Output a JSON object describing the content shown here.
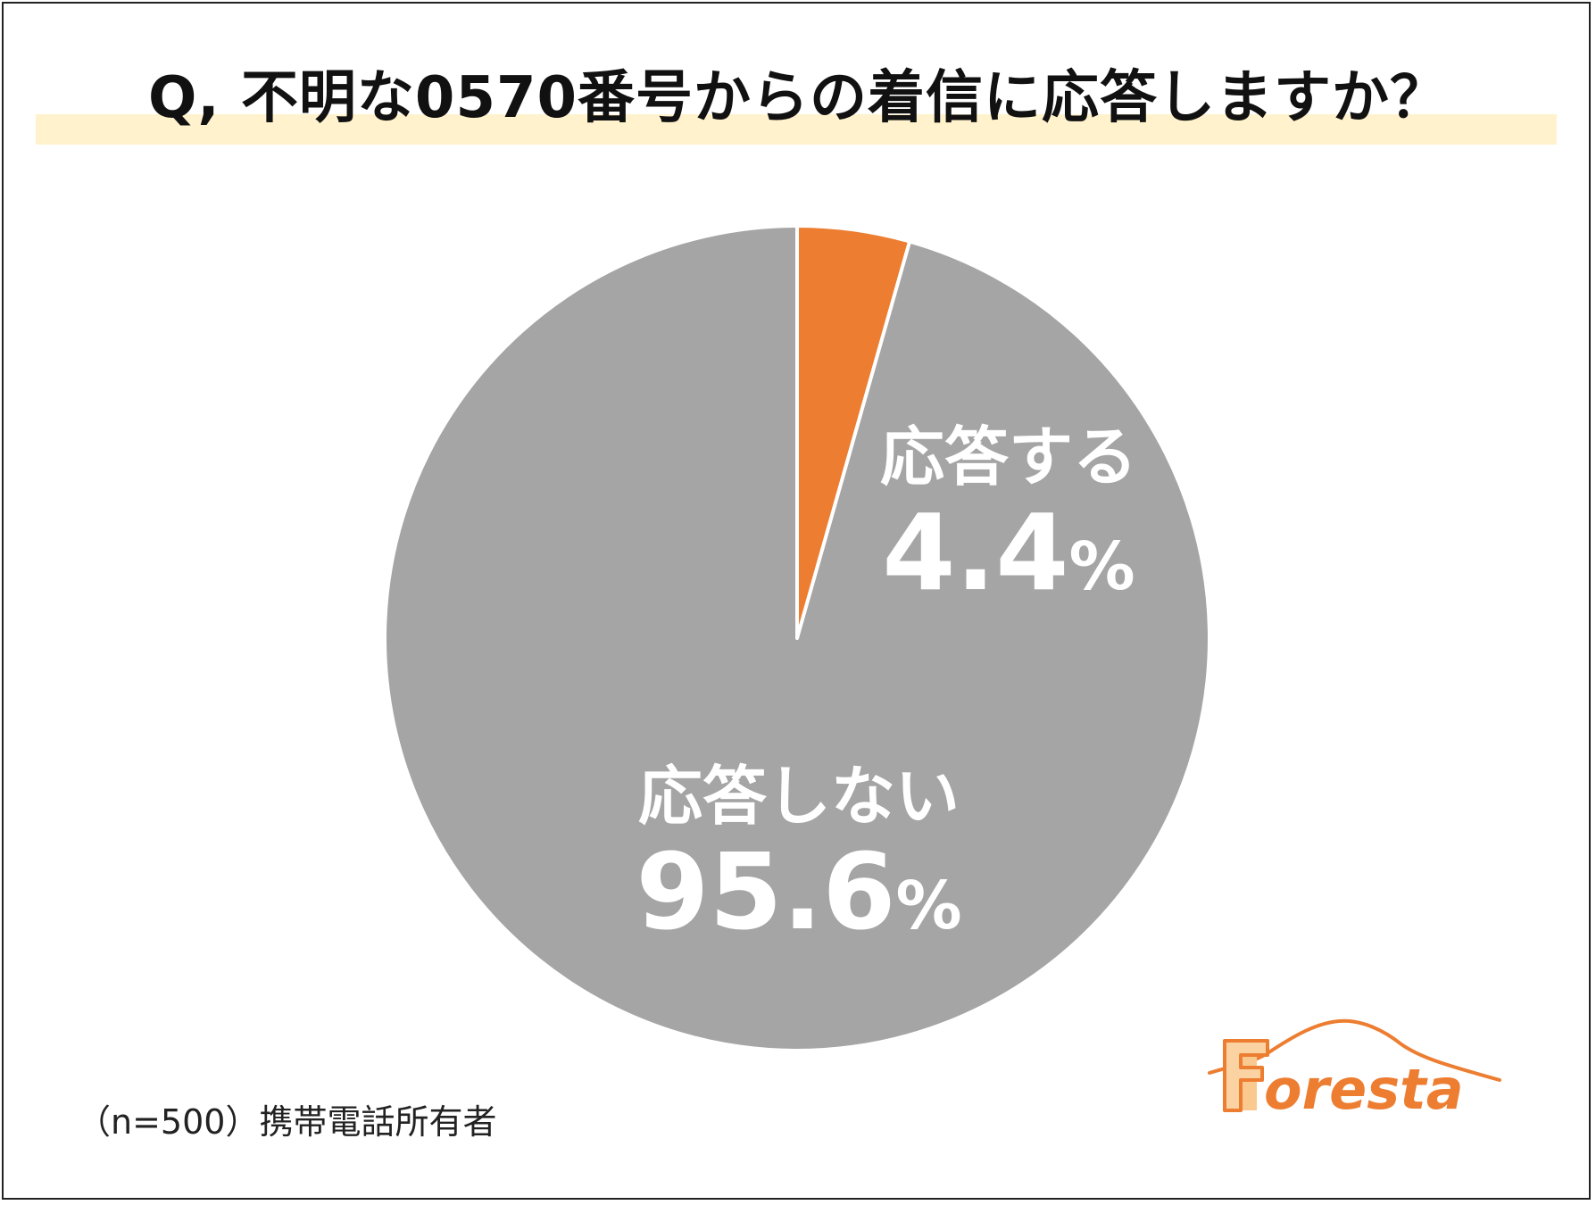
{
  "chart_data": {
    "type": "pie",
    "title": "Q, 不明な0570番号からの着信に応答しますか？",
    "slices": [
      {
        "label": "応答する",
        "value": 4.4,
        "value_text": "4.4",
        "color": "#ED7D31"
      },
      {
        "label": "応答しない",
        "value": 95.6,
        "value_text": "95.6",
        "color": "#A5A5A5"
      }
    ],
    "unit": "%",
    "start_angle": "12 o'clock",
    "direction": "clockwise"
  },
  "note": "（n=500）携帯電話所有者",
  "logo": {
    "text": "Foresta",
    "color": "#ED7D31"
  },
  "colors": {
    "title_band": "#FFF2CC",
    "separator": "#ffffff"
  }
}
